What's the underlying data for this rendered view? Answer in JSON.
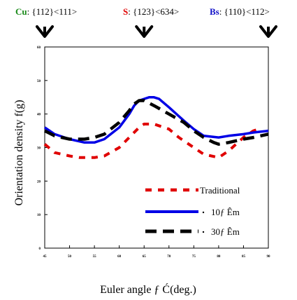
{
  "texture_labels": [
    {
      "name": "Cu",
      "orientation": ": {112}<111>",
      "color": "#1a8a1a"
    },
    {
      "name": "S",
      "orientation": ": {123}<634>",
      "color": "#e00000"
    },
    {
      "name": "Bs",
      "orientation": ": {110}<112>",
      "color": "#1010c8"
    }
  ],
  "chart_data": {
    "type": "line",
    "xlabel": "Euler angle ƒ Ć(deg.)",
    "ylabel": "Orientation density f(g)",
    "xlim": [
      45,
      90
    ],
    "ylim": [
      0,
      60
    ],
    "xticks": [
      "45",
      "50",
      "55",
      "60",
      "65",
      "70",
      "75",
      "80",
      "85",
      "90"
    ],
    "yticks": [
      "0",
      "10",
      "20",
      "30",
      "40",
      "50",
      "60"
    ],
    "grid": false,
    "legend_position": "lower-right",
    "markers_at_x": [
      45,
      65,
      90
    ],
    "series": [
      {
        "name": "Traditional",
        "color": "#e00000",
        "dash": "dashed",
        "x": [
          45,
          47,
          50,
          52,
          55,
          57,
          60,
          62,
          64,
          65,
          67,
          70,
          72,
          75,
          77,
          80,
          82,
          85,
          87,
          88
        ],
        "y": [
          31,
          28.5,
          27.5,
          27,
          27,
          27.5,
          30,
          33,
          36,
          37,
          37,
          35.5,
          33,
          30,
          28,
          27,
          29,
          33,
          35,
          35.5
        ]
      },
      {
        "name": "10ƒ Êm",
        "color": "#0000e6",
        "dash": "solid",
        "x": [
          45,
          47,
          50,
          53,
          55,
          57,
          60,
          62,
          63,
          64,
          65,
          66,
          67,
          68,
          70,
          73,
          75,
          77,
          80,
          82,
          85,
          87,
          90
        ],
        "y": [
          36,
          34,
          32.5,
          31.5,
          31.5,
          32.5,
          36,
          40,
          42.5,
          44,
          44.5,
          45,
          45,
          44.5,
          42,
          38,
          35.5,
          33.5,
          33,
          33.5,
          34,
          34.5,
          35
        ]
      },
      {
        "name": "30ƒ Êm",
        "color": "#000000",
        "dash": "longdash",
        "x": [
          45,
          47,
          50,
          53,
          55,
          57,
          60,
          62,
          63,
          64,
          65,
          67,
          70,
          73,
          75,
          77,
          79,
          80,
          82,
          85,
          87,
          90
        ],
        "y": [
          35,
          33.5,
          32.5,
          32.5,
          33,
          34,
          37.5,
          41,
          43,
          44,
          44,
          42.5,
          40,
          37.5,
          35,
          33,
          31.5,
          31,
          31.5,
          32.5,
          33,
          34
        ]
      }
    ]
  }
}
